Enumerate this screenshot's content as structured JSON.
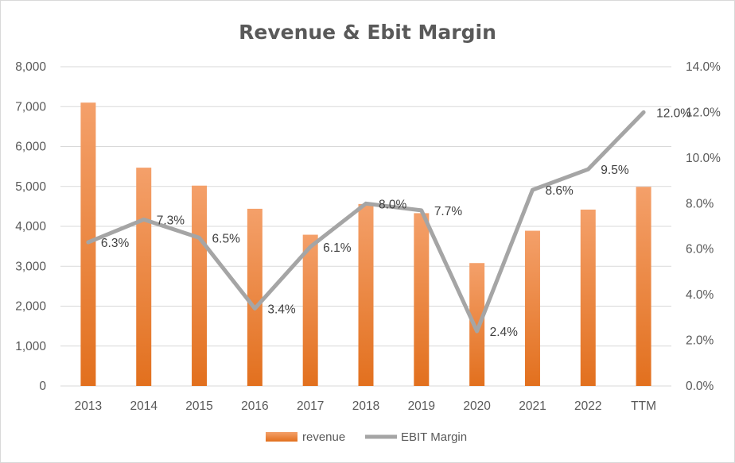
{
  "chart_data": {
    "type": "bar",
    "title": "Revenue & Ebit Margin",
    "categories": [
      "2013",
      "2014",
      "2015",
      "2016",
      "2017",
      "2018",
      "2019",
      "2020",
      "2021",
      "2022",
      "TTM"
    ],
    "series": [
      {
        "name": "revenue",
        "type": "bar",
        "axis": "left",
        "color": "#ed7d31",
        "values": [
          7100,
          5470,
          5020,
          4440,
          3790,
          4560,
          4330,
          3080,
          3890,
          4420,
          4990
        ]
      },
      {
        "name": "EBIT Margin",
        "type": "line",
        "axis": "right",
        "color": "#a5a5a5",
        "values": [
          6.3,
          7.3,
          6.5,
          3.4,
          6.1,
          8.0,
          7.7,
          2.4,
          8.6,
          9.5,
          12.0
        ],
        "data_labels": [
          "6.3%",
          "7.3%",
          "6.5%",
          "3.4%",
          "6.1%",
          "8.0%",
          "7.7%",
          "2.4%",
          "8.6%",
          "9.5%",
          "12.0%"
        ]
      }
    ],
    "y_left": {
      "range": [
        0,
        8000
      ],
      "ticks": [
        0,
        1000,
        2000,
        3000,
        4000,
        5000,
        6000,
        7000,
        8000
      ],
      "tick_labels": [
        "0",
        "1,000",
        "2,000",
        "3,000",
        "4,000",
        "5,000",
        "6,000",
        "7,000",
        "8,000"
      ]
    },
    "y_right": {
      "range": [
        0,
        14
      ],
      "ticks": [
        0,
        2,
        4,
        6,
        8,
        10,
        12,
        14
      ],
      "tick_labels": [
        "0.0%",
        "2.0%",
        "4.0%",
        "6.0%",
        "8.0%",
        "10.0%",
        "12.0%",
        "14.0%"
      ]
    },
    "grid": true,
    "legend_position": "bottom"
  },
  "colors": {
    "title": "#595959",
    "axis_text": "#595959",
    "gridline": "#d9d9d9",
    "bar_top": "#f4a06a",
    "bar_bottom": "#e2701e"
  }
}
